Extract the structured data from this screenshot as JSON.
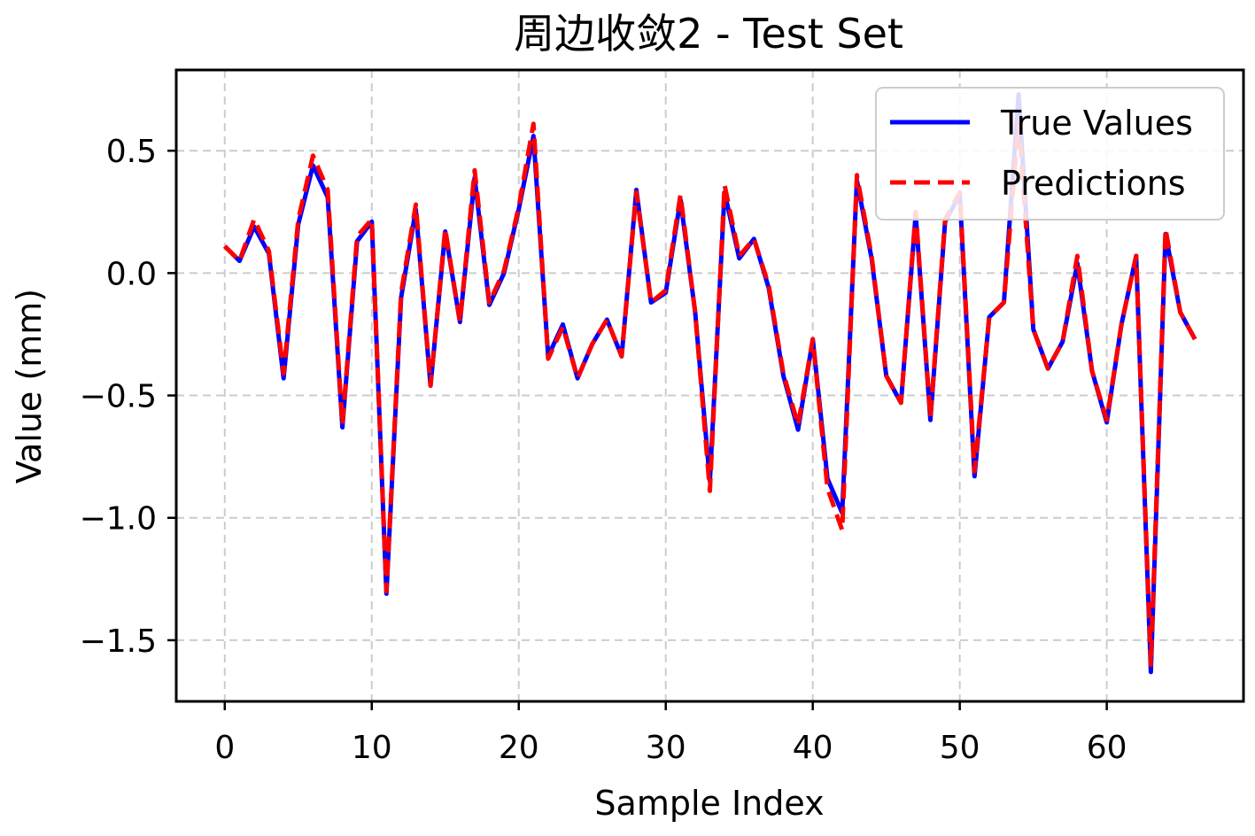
{
  "chart_data": {
    "type": "line",
    "title": "周边收敛2 - Test Set",
    "xlabel": "Sample Index",
    "ylabel": "Value (mm)",
    "xlim": [
      -3.3,
      69.3
    ],
    "ylim": [
      -1.75,
      0.83
    ],
    "xticks": [
      0,
      10,
      20,
      30,
      40,
      50,
      60
    ],
    "xtick_labels": [
      "0",
      "10",
      "20",
      "30",
      "40",
      "50",
      "60"
    ],
    "yticks": [
      0.5,
      0.0,
      -0.5,
      -1.0,
      -1.5
    ],
    "ytick_labels": [
      "0.5",
      "0.0",
      "−0.5",
      "−1.0",
      "−1.5"
    ],
    "grid": true,
    "legend_position": "top-right",
    "x": [
      0,
      1,
      2,
      3,
      4,
      5,
      6,
      7,
      8,
      9,
      10,
      11,
      12,
      13,
      14,
      15,
      16,
      17,
      18,
      19,
      20,
      21,
      22,
      23,
      24,
      25,
      26,
      27,
      28,
      29,
      30,
      31,
      32,
      33,
      34,
      35,
      36,
      37,
      38,
      39,
      40,
      41,
      42,
      43,
      44,
      45,
      46,
      47,
      48,
      49,
      50,
      51,
      52,
      53,
      54,
      55,
      56,
      57,
      58,
      59,
      60,
      61,
      62,
      63,
      64,
      65,
      66
    ],
    "series": [
      {
        "name": "True Values",
        "color": "#0000ff",
        "style": "solid",
        "values": [
          0.11,
          0.05,
          0.19,
          0.08,
          -0.43,
          0.2,
          0.44,
          0.31,
          -0.63,
          0.13,
          0.21,
          -1.31,
          -0.1,
          0.26,
          -0.46,
          0.17,
          -0.2,
          0.39,
          -0.13,
          0.0,
          0.26,
          0.56,
          -0.34,
          -0.21,
          -0.43,
          -0.29,
          -0.19,
          -0.34,
          0.34,
          -0.12,
          -0.08,
          0.3,
          -0.16,
          -0.85,
          0.33,
          0.06,
          0.14,
          -0.06,
          -0.42,
          -0.64,
          -0.27,
          -0.84,
          -0.98,
          0.38,
          0.06,
          -0.42,
          -0.53,
          0.24,
          -0.6,
          0.21,
          0.32,
          -0.83,
          -0.18,
          -0.12,
          0.73,
          -0.23,
          -0.39,
          -0.28,
          0.04,
          -0.4,
          -0.61,
          -0.21,
          0.07,
          -1.63,
          0.16,
          -0.16,
          -0.27
        ]
      },
      {
        "name": "Predictions",
        "color": "#ff0000",
        "style": "dashed",
        "values": [
          0.11,
          0.05,
          0.22,
          0.09,
          -0.41,
          0.22,
          0.48,
          0.34,
          -0.62,
          0.15,
          0.22,
          -1.3,
          -0.08,
          0.28,
          -0.46,
          0.18,
          -0.2,
          0.42,
          -0.12,
          0.01,
          0.27,
          0.61,
          -0.35,
          -0.22,
          -0.43,
          -0.29,
          -0.19,
          -0.34,
          0.33,
          -0.12,
          -0.07,
          0.32,
          -0.16,
          -0.89,
          0.36,
          0.07,
          0.14,
          -0.05,
          -0.41,
          -0.62,
          -0.27,
          -0.88,
          -1.05,
          0.4,
          0.07,
          -0.42,
          -0.53,
          0.25,
          -0.59,
          0.22,
          0.33,
          -0.81,
          -0.18,
          -0.12,
          0.62,
          -0.23,
          -0.39,
          -0.28,
          0.07,
          -0.4,
          -0.6,
          -0.21,
          0.07,
          -1.6,
          0.18,
          -0.16,
          -0.27
        ]
      }
    ]
  }
}
